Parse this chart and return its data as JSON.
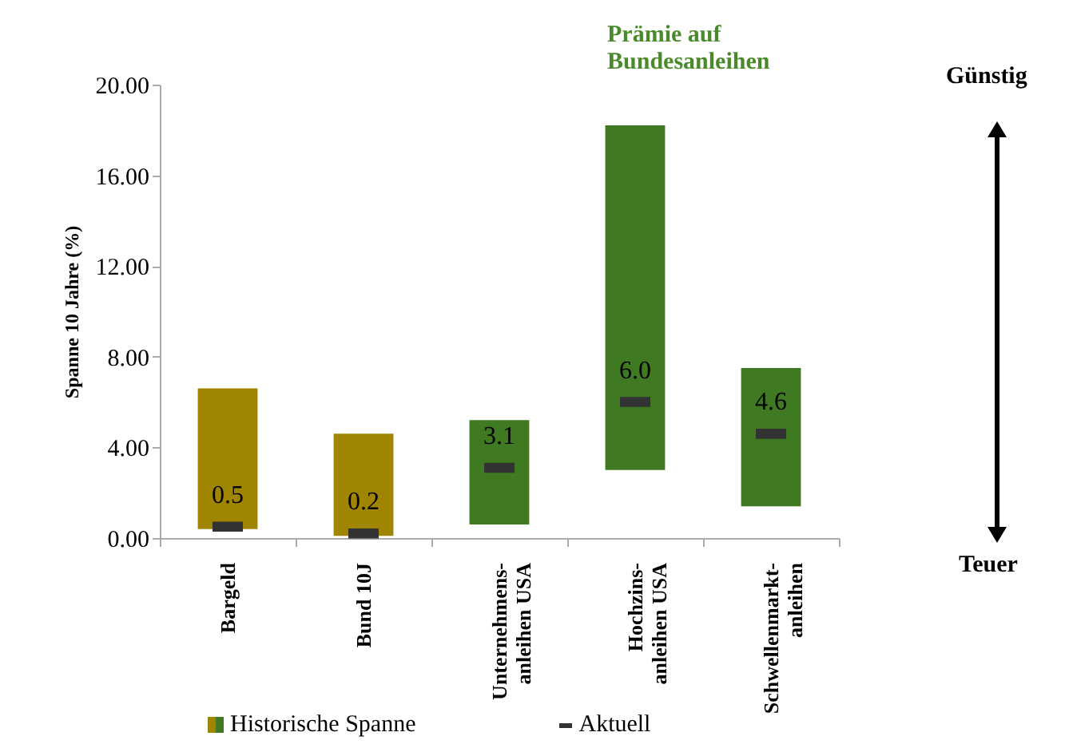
{
  "chart_data": {
    "type": "bar",
    "categories": [
      "Bargeld",
      "Bund 10J",
      "Unternehmens-\nanleihen USA",
      "Hochzins-\nanleihen USA",
      "Schwellenmarkt-\nanleihen"
    ],
    "series": [
      {
        "name": "Historische Spanne",
        "colors": [
          "#a08600",
          "#a08600",
          "#3f7a22",
          "#3f7a22",
          "#3f7a22"
        ],
        "base": [
          0.4,
          0.1,
          0.6,
          3.0,
          1.4
        ],
        "values": [
          6.2,
          4.5,
          4.6,
          15.2,
          6.1
        ]
      },
      {
        "name": "Aktuell",
        "type": "scatter",
        "color": "#333333",
        "values": [
          0.5,
          0.2,
          3.1,
          6.0,
          4.6
        ],
        "value_labels": [
          "0.5",
          "0.2",
          "3.1",
          "6.0",
          "4.6"
        ]
      }
    ],
    "ylabel": "Spanne 10 Jahre (%)",
    "ylim": [
      0,
      20
    ],
    "yticks": [
      {
        "value": 0,
        "label": "0.00"
      },
      {
        "value": 4,
        "label": "4.00"
      },
      {
        "value": 8,
        "label": "8.00"
      },
      {
        "value": 12,
        "label": "12.00"
      },
      {
        "value": 16,
        "label": "16.00"
      },
      {
        "value": 20,
        "label": "20.00"
      }
    ],
    "grid": false,
    "legend": "bottom",
    "annotations": [
      "Prämie auf Bundesanleihen",
      "Günstig",
      "Teuer"
    ]
  }
}
